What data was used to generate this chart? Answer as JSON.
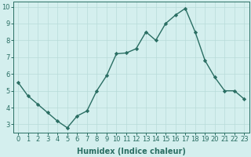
{
  "x": [
    0,
    1,
    2,
    3,
    4,
    5,
    6,
    7,
    8,
    9,
    10,
    11,
    12,
    13,
    14,
    15,
    16,
    17,
    18,
    19,
    20,
    21,
    22,
    23
  ],
  "y": [
    5.5,
    4.7,
    4.2,
    3.7,
    3.2,
    2.8,
    3.5,
    3.8,
    5.0,
    5.9,
    7.2,
    7.25,
    7.5,
    8.5,
    8.0,
    9.0,
    9.5,
    9.9,
    8.5,
    6.8,
    5.8,
    5.0,
    5.0,
    4.5
  ],
  "line_color": "#2a6e63",
  "marker": "D",
  "marker_size": 2.2,
  "line_width": 1.0,
  "bg_color": "#d4efee",
  "grid_color": "#b8dbd9",
  "xlabel": "Humidex (Indice chaleur)",
  "xlabel_fontsize": 7,
  "tick_fontsize": 6,
  "ylim": [
    2.5,
    10.3
  ],
  "xlim": [
    -0.5,
    23.5
  ],
  "yticks": [
    3,
    4,
    5,
    6,
    7,
    8,
    9,
    10
  ],
  "xticks": [
    0,
    1,
    2,
    3,
    4,
    5,
    6,
    7,
    8,
    9,
    10,
    11,
    12,
    13,
    14,
    15,
    16,
    17,
    18,
    19,
    20,
    21,
    22,
    23
  ]
}
